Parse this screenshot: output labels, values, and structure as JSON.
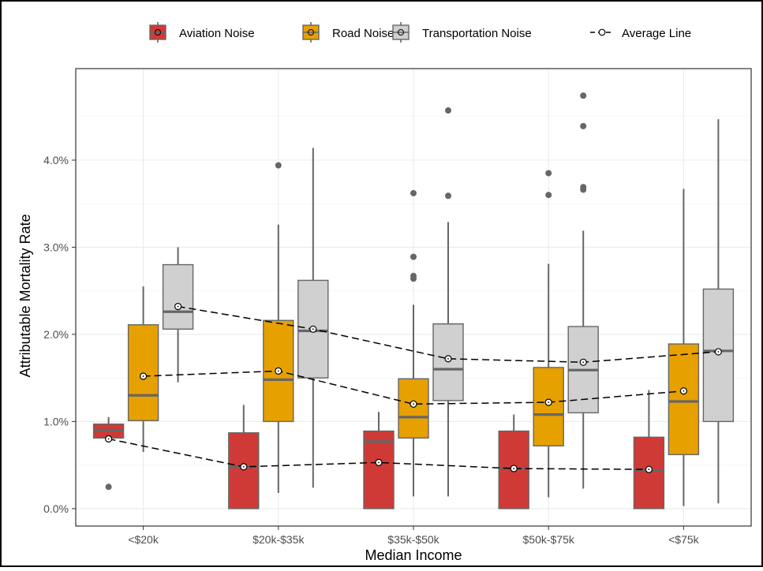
{
  "chart_data": {
    "type": "boxplot",
    "xlabel": "Median Income",
    "ylabel": "Attributable Mortality Rate",
    "ylim": [
      -0.2,
      5.05
    ],
    "y_ticks": [
      0,
      1,
      2,
      3,
      4
    ],
    "y_tick_labels": [
      "0.0%",
      "1.0%",
      "2.0%",
      "3.0%",
      "4.0%"
    ],
    "categories": [
      "<$20k",
      "$20k-$35k",
      "$35k-$50k",
      "$50k-$75k",
      "<$75k"
    ],
    "grid": true,
    "legend_position": "top",
    "series": [
      {
        "name": "Aviation Noise",
        "color": "#d03a36",
        "boxes": [
          {
            "whisker_low": 0.81,
            "q1": 0.81,
            "median": 0.9,
            "q3": 0.97,
            "whisker_high": 1.05,
            "outliers": [
              0.25
            ],
            "mean": 0.8
          },
          {
            "whisker_low": 0.0,
            "q1": 0.0,
            "median": 0.48,
            "q3": 0.87,
            "whisker_high": 1.19,
            "outliers": [],
            "mean": 0.48
          },
          {
            "whisker_low": 0.0,
            "q1": 0.0,
            "median": 0.77,
            "q3": 0.89,
            "whisker_high": 1.11,
            "outliers": [],
            "mean": 0.53
          },
          {
            "whisker_low": 0.0,
            "q1": 0.0,
            "median": 0.46,
            "q3": 0.89,
            "whisker_high": 1.08,
            "outliers": [],
            "mean": 0.46
          },
          {
            "whisker_low": 0.0,
            "q1": 0.0,
            "median": 0.44,
            "q3": 0.82,
            "whisker_high": 1.36,
            "outliers": [],
            "mean": 0.45
          }
        ]
      },
      {
        "name": "Road Noise",
        "color": "#e6a000",
        "boxes": [
          {
            "whisker_low": 0.65,
            "q1": 1.01,
            "median": 1.3,
            "q3": 2.11,
            "whisker_high": 2.55,
            "outliers": [],
            "mean": 1.52
          },
          {
            "whisker_low": 0.18,
            "q1": 1.0,
            "median": 1.48,
            "q3": 2.16,
            "whisker_high": 3.26,
            "outliers": [
              3.94
            ],
            "mean": 1.58
          },
          {
            "whisker_low": 0.14,
            "q1": 0.81,
            "median": 1.05,
            "q3": 1.49,
            "whisker_high": 2.34,
            "outliers": [
              2.64,
              2.67,
              2.89,
              3.62
            ],
            "mean": 1.2
          },
          {
            "whisker_low": 0.13,
            "q1": 0.72,
            "median": 1.08,
            "q3": 1.62,
            "whisker_high": 2.81,
            "outliers": [
              3.6,
              3.85
            ],
            "mean": 1.22
          },
          {
            "whisker_low": 0.03,
            "q1": 0.62,
            "median": 1.23,
            "q3": 1.89,
            "whisker_high": 3.67,
            "outliers": [],
            "mean": 1.35
          }
        ]
      },
      {
        "name": "Transportation Noise",
        "color": "#d0d0d0",
        "boxes": [
          {
            "whisker_low": 1.45,
            "q1": 2.06,
            "median": 2.26,
            "q3": 2.8,
            "whisker_high": 3.0,
            "outliers": [],
            "mean": 2.32
          },
          {
            "whisker_low": 0.24,
            "q1": 1.5,
            "median": 2.04,
            "q3": 2.62,
            "whisker_high": 4.14,
            "outliers": [],
            "mean": 2.06
          },
          {
            "whisker_low": 0.14,
            "q1": 1.24,
            "median": 1.6,
            "q3": 2.12,
            "whisker_high": 3.29,
            "outliers": [
              3.59,
              4.57
            ],
            "mean": 1.72
          },
          {
            "whisker_low": 0.23,
            "q1": 1.1,
            "median": 1.59,
            "q3": 2.09,
            "whisker_high": 3.19,
            "outliers": [
              3.66,
              3.69,
              4.39,
              4.74
            ],
            "mean": 1.68
          },
          {
            "whisker_low": 0.06,
            "q1": 1.0,
            "median": 1.81,
            "q3": 2.52,
            "whisker_high": 4.47,
            "outliers": [],
            "mean": 1.8
          }
        ]
      }
    ],
    "average_line": {
      "name": "Average Line",
      "style": "dashed",
      "marker": "open-circle-with-dot",
      "color": "#000000"
    },
    "colors": {
      "box_outline": "#666666",
      "median": "#666666",
      "grid": "#ebebeb",
      "panel_border": "#333333",
      "axis_text": "#4d4d4d"
    }
  }
}
